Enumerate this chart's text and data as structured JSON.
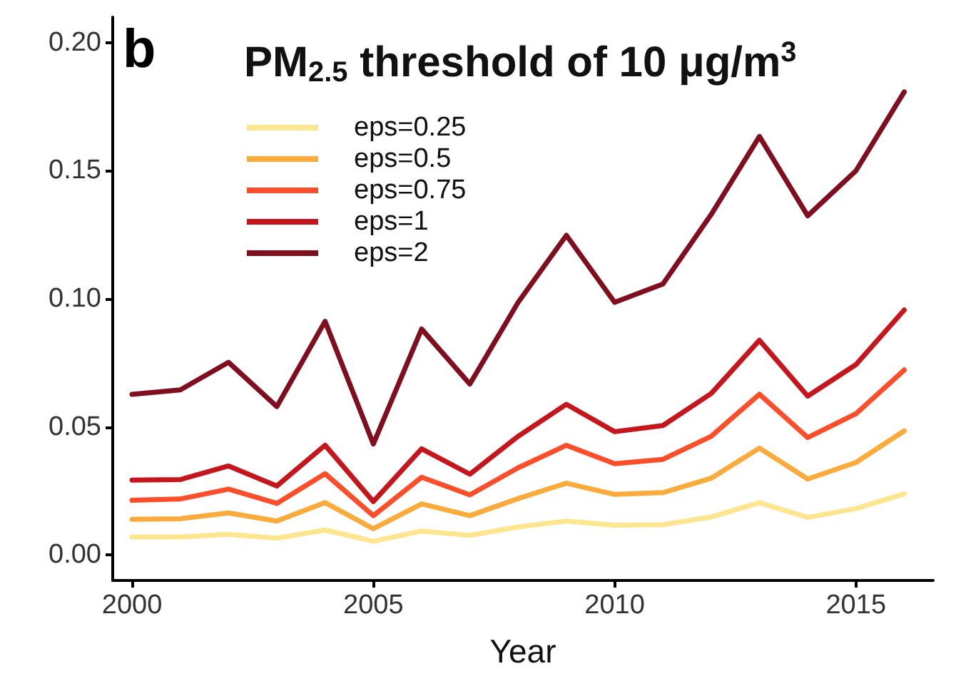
{
  "chart_data": {
    "type": "line",
    "title": "PM$_{2.5}$ threshold of 10 μg/m$^{3}$",
    "annotations": [
      "b"
    ],
    "xlabel": "Year",
    "x": [
      2000,
      2001,
      2002,
      2003,
      2004,
      2005,
      2006,
      2007,
      2008,
      2009,
      2010,
      2011,
      2012,
      2013,
      2014,
      2015,
      2016
    ],
    "series": [
      {
        "name": "eps=0.25",
        "color": "#fde68f",
        "values": [
          0.007,
          0.007,
          0.008,
          0.0065,
          0.0097,
          0.0053,
          0.0093,
          0.0076,
          0.0109,
          0.0132,
          0.0116,
          0.0118,
          0.0148,
          0.0204,
          0.0146,
          0.0181,
          0.0238
        ]
      },
      {
        "name": "eps=0.5",
        "color": "#fbab3c",
        "values": [
          0.0139,
          0.0141,
          0.0164,
          0.0132,
          0.0204,
          0.0102,
          0.0199,
          0.0153,
          0.022,
          0.028,
          0.0236,
          0.0243,
          0.0299,
          0.0417,
          0.0296,
          0.0361,
          0.0484
        ]
      },
      {
        "name": "eps=0.75",
        "color": "#fc4e2a",
        "values": [
          0.0213,
          0.0218,
          0.0257,
          0.0201,
          0.0317,
          0.0153,
          0.0303,
          0.0234,
          0.034,
          0.0428,
          0.0356,
          0.0373,
          0.0463,
          0.0627,
          0.0458,
          0.0551,
          0.0722
        ]
      },
      {
        "name": "eps=1",
        "color": "#c4161c",
        "values": [
          0.0292,
          0.0294,
          0.0347,
          0.0269,
          0.0428,
          0.0208,
          0.0414,
          0.0315,
          0.0463,
          0.0588,
          0.0481,
          0.0505,
          0.063,
          0.0838,
          0.062,
          0.0743,
          0.0956
        ]
      },
      {
        "name": "eps=2",
        "color": "#7f0f1e",
        "values": [
          0.0627,
          0.0644,
          0.0752,
          0.0579,
          0.0912,
          0.0433,
          0.0882,
          0.0667,
          0.0986,
          0.1248,
          0.0986,
          0.1058,
          0.1329,
          0.1634,
          0.1324,
          0.15,
          0.1808
        ]
      }
    ],
    "xlim": [
      1999.6,
      2016.6
    ],
    "xticks": [
      2000,
      2005,
      2010,
      2015
    ],
    "ylim": [
      -0.01,
      0.21
    ],
    "yticks": [
      {
        "value": 0,
        "label": "0.00"
      },
      {
        "value": 0.05,
        "label": "0.05"
      },
      {
        "value": 0.1,
        "label": "0.10"
      },
      {
        "value": 0.15,
        "label": "0.15"
      },
      {
        "value": 0.2,
        "label": "0.20"
      }
    ],
    "grid": false,
    "legend": "top left",
    "line_style": "solid",
    "marker": "none"
  }
}
